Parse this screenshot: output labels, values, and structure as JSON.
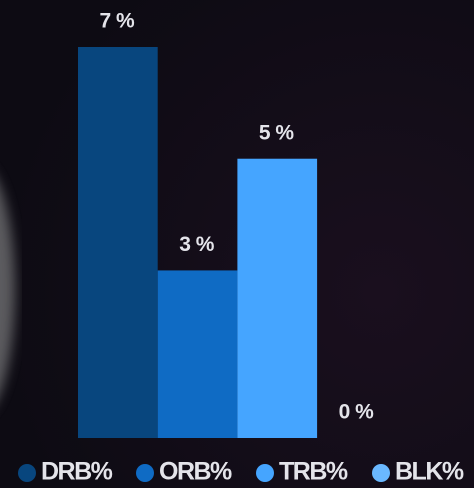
{
  "chart_data": {
    "type": "bar",
    "categories": [
      "DRB%",
      "ORB%",
      "TRB%",
      "BLK%"
    ],
    "values": [
      7,
      3,
      5,
      0
    ],
    "value_labels": [
      "7 %",
      "3 %",
      "5 %",
      "0 %"
    ],
    "colors": [
      "#08467e",
      "#0f6bc4",
      "#45a5ff",
      "#6ab8ff"
    ]
  }
}
